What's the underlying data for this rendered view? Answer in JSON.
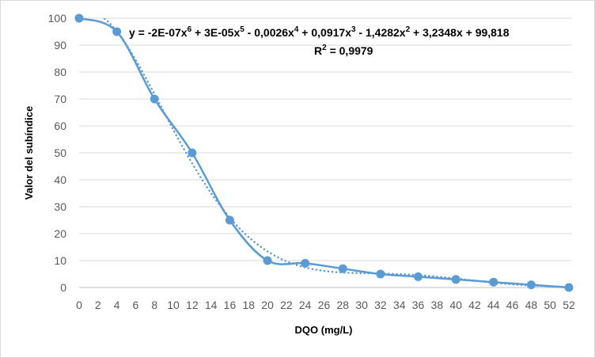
{
  "chart_data": {
    "type": "scatter",
    "title": "",
    "xlabel": "DQO (mg/L)",
    "ylabel": "Valor del subíndice",
    "xlim": [
      0,
      52
    ],
    "ylim": [
      0,
      100
    ],
    "x_ticks": [
      0,
      2,
      4,
      6,
      8,
      10,
      12,
      14,
      16,
      18,
      20,
      22,
      24,
      26,
      28,
      30,
      32,
      34,
      36,
      38,
      40,
      42,
      44,
      46,
      48,
      50,
      52
    ],
    "y_ticks": [
      0,
      10,
      20,
      30,
      40,
      50,
      60,
      70,
      80,
      90,
      100
    ],
    "grid": "horizontal",
    "series": [
      {
        "name": "Valor del subíndice",
        "style": "smoothed line with markers",
        "color": "#5B9BD5",
        "x": [
          0,
          4,
          8,
          12,
          16,
          20,
          24,
          28,
          32,
          36,
          40,
          44,
          48,
          52
        ],
        "y": [
          100,
          95,
          70,
          50,
          25,
          10,
          9,
          7,
          5,
          4,
          3,
          2,
          1,
          0
        ]
      }
    ],
    "trendline": {
      "type": "polynomial",
      "order": 6,
      "style": "dotted",
      "color": "#5B9BD5",
      "equation_parts": [
        "y = -2E-07x",
        "6",
        " + 3E-05x",
        "5",
        " - 0,0026x",
        "4",
        " + 0,0917x",
        "3",
        " - 1,4282x",
        "2",
        " + 3,2348x + 99,818"
      ],
      "r2_parts": [
        "R",
        "2",
        " = 0,9979"
      ]
    }
  }
}
